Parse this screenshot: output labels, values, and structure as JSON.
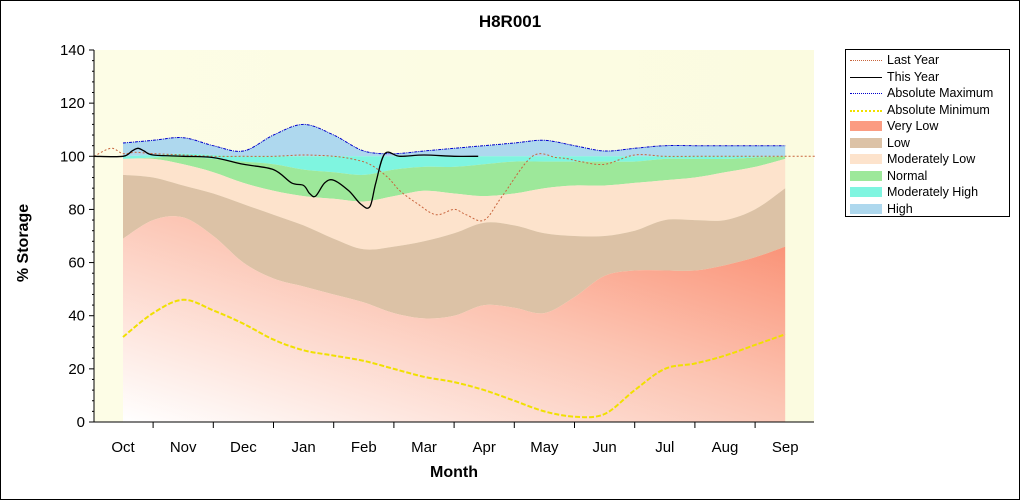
{
  "chart_data": {
    "type": "area",
    "title": "H8R001",
    "xlabel": "Month",
    "ylabel": "% Storage",
    "ylim": [
      0,
      140
    ],
    "yticks": [
      0,
      20,
      40,
      60,
      80,
      100,
      120,
      140
    ],
    "months": [
      "Oct",
      "Nov",
      "Dec",
      "Jan",
      "Feb",
      "Mar",
      "Apr",
      "May",
      "Jun",
      "Jul",
      "Aug",
      "Sep"
    ],
    "grid": false,
    "legend_position": "right",
    "bands": {
      "x": [
        0,
        0.5,
        1,
        1.5,
        2,
        2.5,
        3,
        3.5,
        4,
        4.5,
        5,
        5.5,
        6,
        6.5,
        7,
        7.5,
        8,
        8.5,
        9,
        9.5,
        10,
        10.5,
        11
      ],
      "min": [
        32,
        41,
        46,
        42,
        37,
        31,
        27,
        25,
        23,
        20,
        17,
        15,
        12,
        8,
        4,
        2,
        3,
        12,
        20,
        22,
        25,
        29,
        33
      ],
      "very_low": [
        69,
        76,
        77,
        70,
        60,
        54,
        51,
        48,
        45,
        41,
        39,
        40,
        44,
        43,
        41,
        47,
        55,
        57,
        57,
        57,
        59,
        62,
        66
      ],
      "low": [
        93,
        92,
        89,
        86,
        82,
        78,
        74,
        69,
        65,
        66,
        68,
        71,
        75,
        74,
        71,
        70,
        70,
        72,
        76,
        76,
        76,
        80,
        88
      ],
      "mod_low": [
        99,
        99,
        97,
        94,
        90,
        87,
        85,
        84,
        83,
        85,
        87,
        86,
        85,
        86,
        88,
        89,
        89,
        90,
        91,
        92,
        94,
        96,
        99
      ],
      "normal": [
        99,
        99.5,
        100,
        99,
        98,
        97,
        95,
        94,
        93,
        95,
        96,
        96,
        97,
        98,
        98,
        98,
        98,
        98,
        99,
        99,
        99,
        99.5,
        100
      ],
      "mod_high": [
        100,
        100.5,
        101,
        100.5,
        100,
        100,
        100,
        100,
        100,
        100,
        100,
        100,
        100,
        100,
        100,
        100,
        100,
        100,
        100,
        100,
        100,
        100,
        100
      ],
      "max": [
        105,
        106,
        107,
        104,
        102,
        108,
        112,
        108,
        102,
        101,
        102,
        103,
        104,
        105,
        106,
        104,
        102,
        103,
        104,
        104,
        104,
        104,
        104
      ]
    },
    "series": [
      {
        "name": "Last Year",
        "color": "#c8643c",
        "x": [
          -0.5,
          -0.2,
          0,
          0.2,
          0.5,
          1,
          1.5,
          2,
          2.5,
          3,
          3.5,
          3.8,
          4.1,
          4.4,
          4.6,
          4.9,
          5.2,
          5.5,
          5.7,
          6,
          6.3,
          6.8,
          7.2,
          7.4,
          7.6,
          8,
          8.5,
          9,
          9.5,
          10,
          10.5,
          11,
          11.5
        ],
        "y": [
          100,
          103,
          101,
          101.5,
          101,
          100.5,
          100,
          100,
          100,
          100.5,
          100,
          99,
          97,
          92,
          87,
          82,
          78,
          80,
          78,
          76,
          85,
          100,
          99.5,
          99,
          98,
          97,
          100.5,
          100,
          100,
          100,
          100,
          100,
          100
        ]
      },
      {
        "name": "This Year",
        "color": "#000000",
        "x": [
          -0.5,
          0,
          0.15,
          0.25,
          0.35,
          0.5,
          1,
          1.5,
          2,
          2.5,
          2.8,
          3,
          3.1,
          3.2,
          3.35,
          3.5,
          3.75,
          3.95,
          4.1,
          4.2,
          4.35,
          4.6,
          5,
          5.5,
          5.9
        ],
        "y": [
          100,
          100,
          102,
          103,
          102,
          100.5,
          100,
          99.5,
          97,
          95,
          90,
          89,
          86,
          85,
          90,
          91,
          87,
          82,
          81,
          90,
          101,
          100,
          100.5,
          100,
          100
        ]
      },
      {
        "name": "Absolute Maximum",
        "color": "#0000cc"
      },
      {
        "name": "Absolute Minimum",
        "color": "#f0e000"
      }
    ],
    "legend": [
      {
        "label": "Last Year",
        "kind": "line",
        "color": "#c8643c",
        "dash": "2,2"
      },
      {
        "label": "This Year",
        "kind": "line",
        "color": "#000000",
        "dash": ""
      },
      {
        "label": "Absolute Maximum",
        "kind": "line",
        "color": "#0000cc",
        "dash": "3,1,1,1"
      },
      {
        "label": "Absolute Minimum",
        "kind": "line",
        "color": "#f0e000",
        "dash": "4,2"
      },
      {
        "label": "Very Low",
        "kind": "fill",
        "color": "#fb9c82"
      },
      {
        "label": "Low",
        "kind": "fill",
        "color": "#dcc2a6"
      },
      {
        "label": "Moderately Low",
        "kind": "fill",
        "color": "#fde3cc"
      },
      {
        "label": "Normal",
        "kind": "fill",
        "color": "#9de89a"
      },
      {
        "label": "Moderately High",
        "kind": "fill",
        "color": "#7ff5e0"
      },
      {
        "label": "High",
        "kind": "fill",
        "color": "#aed8ee"
      }
    ]
  }
}
